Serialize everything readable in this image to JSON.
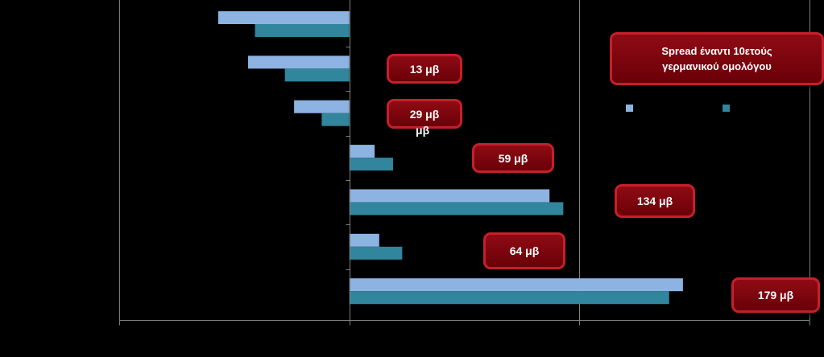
{
  "chart_data": {
    "type": "bar",
    "orientation": "horizontal",
    "categories": [
      "",
      "",
      "",
      "",
      "",
      "",
      ""
    ],
    "series": [
      {
        "values": [
          -57,
          -44,
          -24,
          11,
          87,
          13,
          145
        ],
        "color": "#8db3e2"
      },
      {
        "values": [
          -41,
          -28,
          -12,
          19,
          93,
          23,
          139
        ],
        "color": "#31859c"
      }
    ],
    "xlim": [
      -100,
      200
    ],
    "gridlines": [
      -100,
      100,
      200
    ],
    "grid": true,
    "legend": "right",
    "annotations": [
      "13 μβ",
      "29 μβ",
      "59 μβ",
      "134 μβ",
      "64 μβ",
      "179  μβ"
    ],
    "title_box": "Spread έναντι 10ετούς\nγερμανικού ομολόγου"
  },
  "stray_labels": [
    "μβ"
  ],
  "colors": {
    "callout_fill": "#7d0610",
    "callout_border": "#c4202b",
    "background": "#000000",
    "axis": "#7f7f7f"
  }
}
